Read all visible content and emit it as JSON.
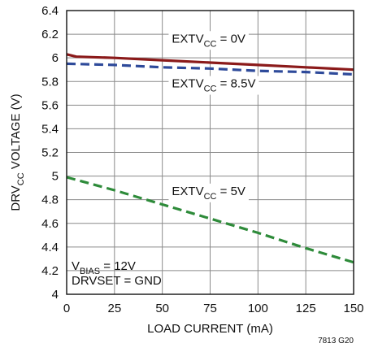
{
  "chart_data": {
    "type": "line",
    "xlabel": "LOAD CURRENT (mA)",
    "ylabel": {
      "prefix": "DRV",
      "sub": "CC",
      "suffix": " VOLTAGE (V)"
    },
    "xlim": [
      0,
      150
    ],
    "ylim": [
      4,
      6.4
    ],
    "x_ticks": [
      0,
      25,
      50,
      75,
      100,
      125,
      150
    ],
    "y_ticks": [
      4,
      4.2,
      4.4,
      4.6,
      4.8,
      5,
      5.2,
      5.4,
      5.6,
      5.8,
      6,
      6.2,
      6.4
    ],
    "grid": true,
    "series": [
      {
        "name": "EXTVCC = 0V",
        "color": "#8b1a1a",
        "style": "solid",
        "x": [
          0,
          5,
          25,
          50,
          75,
          100,
          125,
          150
        ],
        "y": [
          6.03,
          6.01,
          6.0,
          5.98,
          5.96,
          5.94,
          5.92,
          5.9
        ]
      },
      {
        "name": "EXTVCC = 8.5V",
        "color": "#2e4a9a",
        "style": "dashed",
        "x": [
          0,
          25,
          50,
          75,
          100,
          125,
          150
        ],
        "y": [
          5.95,
          5.94,
          5.92,
          5.91,
          5.89,
          5.88,
          5.86
        ]
      },
      {
        "name": "EXTVCC = 5V",
        "color": "#2e8b3a",
        "style": "dashed",
        "x": [
          0,
          25,
          50,
          75,
          100,
          125,
          150
        ],
        "y": [
          4.99,
          4.88,
          4.76,
          4.64,
          4.52,
          4.39,
          4.27
        ]
      }
    ],
    "annotations": [
      {
        "prefix": "EXTV",
        "sub": "CC",
        "suffix": " = 0V",
        "x": 55,
        "y": 6.13
      },
      {
        "prefix": "EXTV",
        "sub": "CC",
        "suffix": " = 8.5V",
        "x": 55,
        "y": 5.75
      },
      {
        "prefix": "EXTV",
        "sub": "CC",
        "suffix": " = 5V",
        "x": 55,
        "y": 4.84
      }
    ],
    "conditions": [
      {
        "prefix": "V",
        "sub": "BIAS",
        "suffix": " = 12V"
      },
      {
        "prefix": "DRVSET = GND",
        "sub": "",
        "suffix": ""
      }
    ],
    "figure_id": "7813 G20"
  }
}
